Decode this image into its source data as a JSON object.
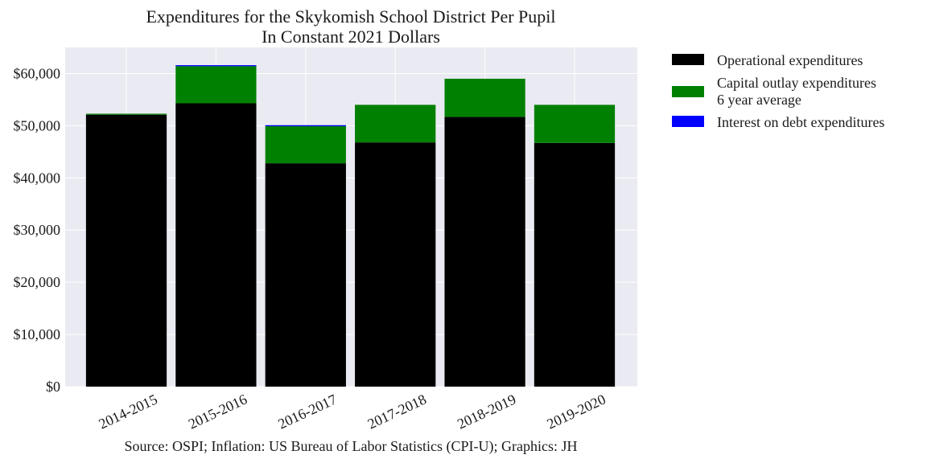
{
  "chart_data": {
    "type": "bar",
    "stacked": true,
    "title": "Expenditures for the Skykomish School District Per Pupil",
    "subtitle": "In Constant 2021 Dollars",
    "xlabel": "",
    "ylabel": "",
    "categories": [
      "2014-2015",
      "2015-2016",
      "2016-2017",
      "2017-2018",
      "2018-2019",
      "2019-2020"
    ],
    "series": [
      {
        "name": "Operational expenditures",
        "color": "#000000",
        "values": [
          52100,
          54300,
          42800,
          46800,
          51700,
          46700
        ]
      },
      {
        "name": "Capital outlay expenditures\n6 year average",
        "color": "#008000",
        "values": [
          200,
          7100,
          7100,
          7200,
          7300,
          7300
        ]
      },
      {
        "name": "Interest on debt expenditures",
        "color": "#0000ff",
        "values": [
          0,
          200,
          200,
          0,
          0,
          0
        ]
      }
    ],
    "ylim": [
      0,
      65000
    ],
    "yticks": [
      0,
      10000,
      20000,
      30000,
      40000,
      50000,
      60000
    ],
    "ytick_labels": [
      "$0",
      "$10,000",
      "$20,000",
      "$30,000",
      "$40,000",
      "$50,000",
      "$60,000"
    ],
    "grid": true,
    "legend_position": "outside-right",
    "plot_background": "#eaeaf2",
    "source": "Source: OSPI; Inflation: US Bureau of Labor Statistics (CPI-U); Graphics: JH"
  }
}
